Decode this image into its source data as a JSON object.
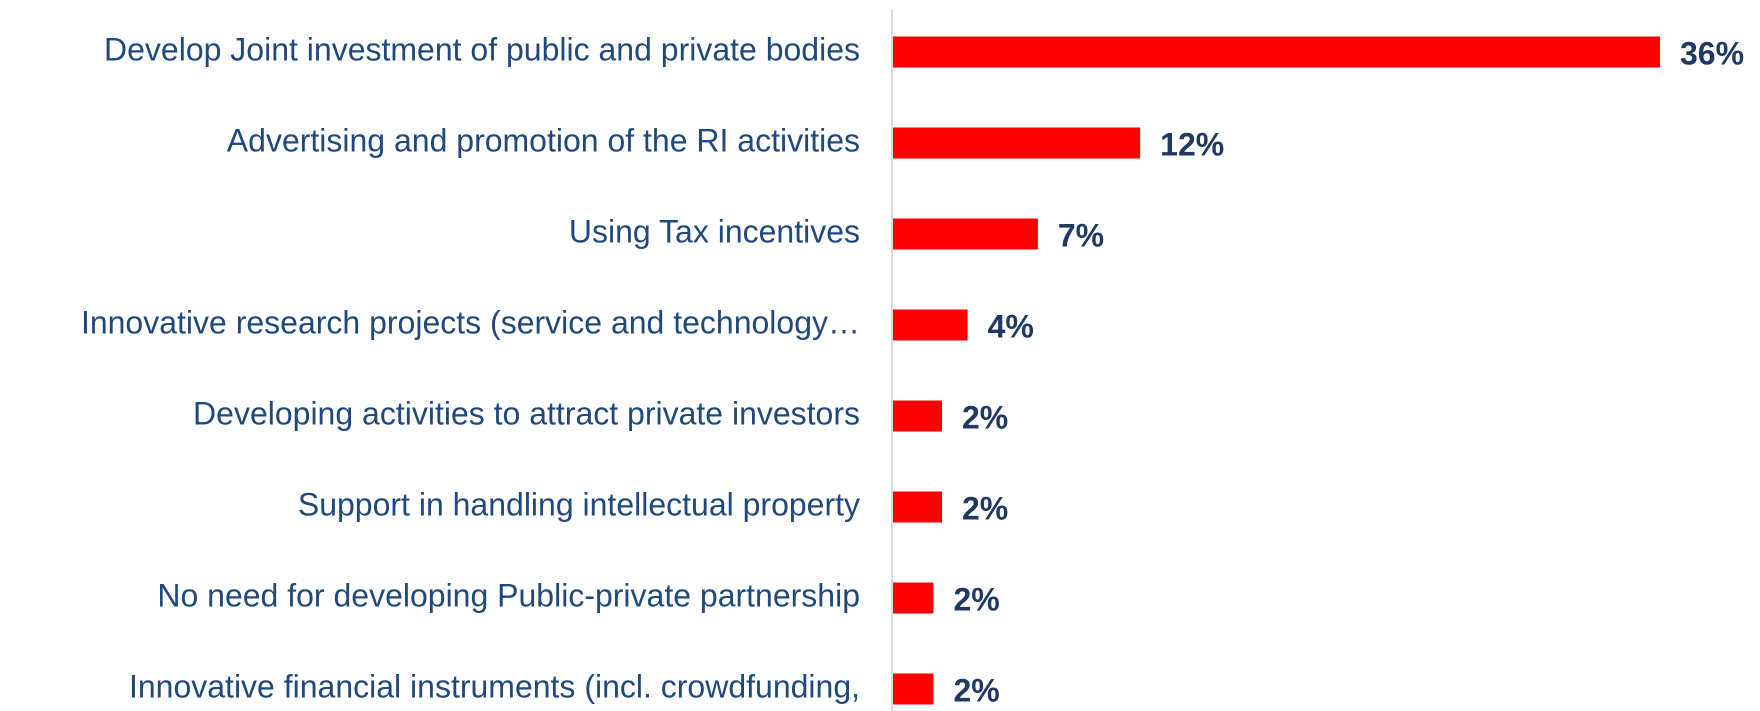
{
  "chart_data": {
    "type": "hbar",
    "categories": [
      "Develop Joint investment of public and private bodies",
      "Advertising and promotion of the RI activities",
      "Using Tax incentives",
      "Innovative research projects  (service and technology…",
      "Developing activities to attract private investors",
      "Support in handling intellectual property",
      "No need for developing Public-private partnership",
      "Innovative financial instruments (incl. crowdfunding,"
    ],
    "values": [
      36,
      11.6,
      6.8,
      3.5,
      2.3,
      2.3,
      1.9,
      1.9
    ],
    "value_labels": [
      "36%",
      "12%",
      "7%",
      "4%",
      "2%",
      "2%",
      "2%",
      "2%"
    ],
    "color": "#ff0000"
  }
}
